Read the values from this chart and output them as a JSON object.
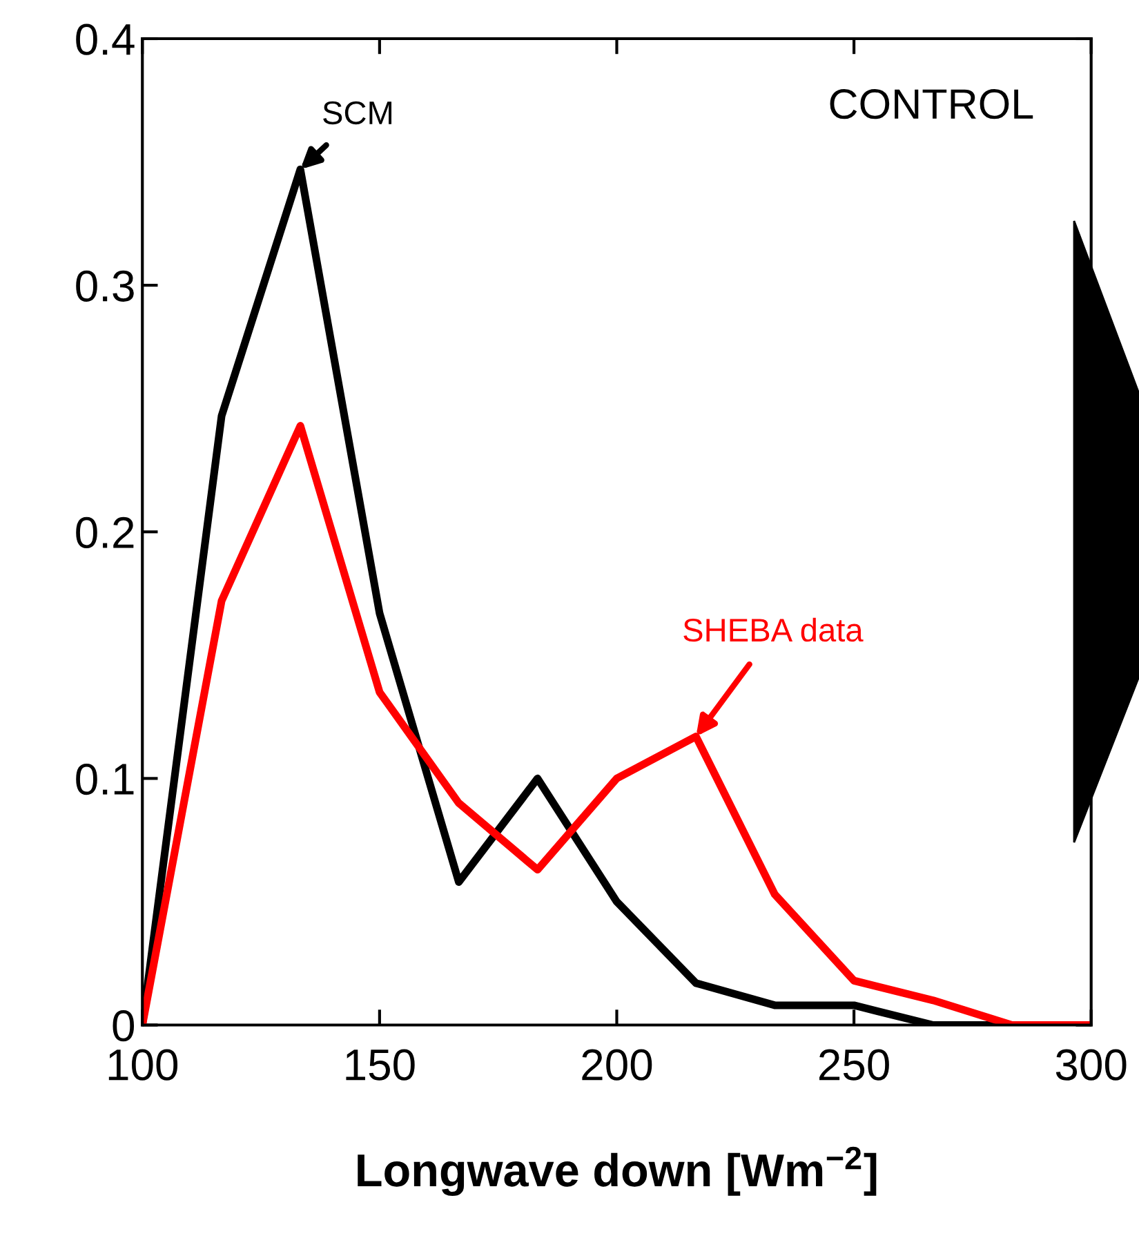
{
  "chart_data": {
    "type": "line",
    "xlabel": "Longwave down [Wm$^{−2}$]",
    "x": [
      100,
      116.7,
      133.3,
      150,
      166.7,
      183.3,
      200,
      216.7,
      233.3,
      250,
      266.7,
      283.3,
      300
    ],
    "series": [
      {
        "color": "#000000",
        "values": [
          0,
          0.247,
          0.347,
          0.167,
          0.058,
          0.1,
          0.05,
          0.017,
          0.008,
          0.008,
          0,
          0,
          0
        ]
      },
      {
        "color": "#ff0000",
        "values": [
          0,
          0.172,
          0.243,
          0.135,
          0.09,
          0.063,
          0.1,
          0.117,
          0.053,
          0.018,
          0.01,
          0,
          0
        ]
      }
    ],
    "annotations": [
      {
        "text": "SCM",
        "x": 133.3,
        "y": 0.347
      },
      {
        "text": "SHEBA data",
        "x": 216.7,
        "y": 0.117
      },
      "CONTROL"
    ],
    "xlim": [
      100,
      300
    ],
    "ylim": [
      0,
      0.4
    ],
    "xticks": [
      100,
      150,
      200,
      250,
      300
    ],
    "yticks": [
      0,
      {
        "value": 0.1,
        "label": "0.1"
      },
      {
        "value": 0.2,
        "label": "0.2"
      },
      {
        "value": 0.3,
        "label": "0.3"
      },
      {
        "value": 0.4,
        "label": "0.4"
      }
    ],
    "grid": false,
    "legend": false,
    "marker": "none",
    "line_style": "solid"
  }
}
